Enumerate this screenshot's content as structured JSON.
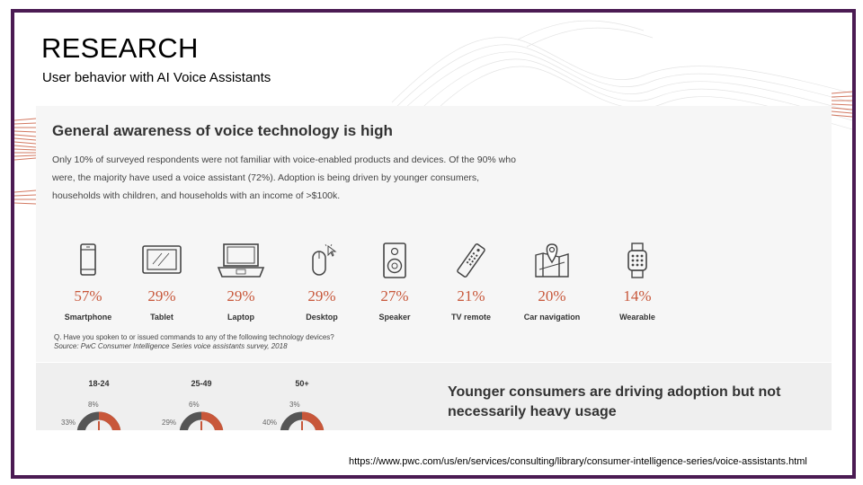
{
  "slide": {
    "title": "RESEARCH",
    "subtitle": "User behavior with AI Voice Assistants",
    "source_url": "https://www.pwc.com/us/en/services/consulting/library/consumer-intelligence-series/voice-assistants.html"
  },
  "card": {
    "heading": "General awareness of voice technology is high",
    "body": "Only 10% of surveyed respondents were not familiar with voice-enabled products and devices. Of the 90% who were, the majority have used a voice assistant (72%). Adoption is being driven by younger consumers, households with children, and households with an income of >$100k.",
    "devices": [
      {
        "name": "Smartphone",
        "percent": "57%",
        "icon": "smartphone-icon"
      },
      {
        "name": "Tablet",
        "percent": "29%",
        "icon": "tablet-icon"
      },
      {
        "name": "Laptop",
        "percent": "29%",
        "icon": "laptop-icon"
      },
      {
        "name": "Desktop",
        "percent": "29%",
        "icon": "desktop-mouse-icon"
      },
      {
        "name": "Speaker",
        "percent": "27%",
        "icon": "speaker-icon"
      },
      {
        "name": "TV remote",
        "percent": "21%",
        "icon": "tv-remote-icon"
      },
      {
        "name": "Car navigation",
        "percent": "20%",
        "icon": "car-navigation-icon"
      },
      {
        "name": "Wearable",
        "percent": "14%",
        "icon": "wearable-icon"
      }
    ],
    "question": "Q. Have you spoken to or issued commands to any of the following technology devices?",
    "source": "Source: PwC Consumer Intelligence Series voice assistants survey, 2018"
  },
  "card2": {
    "age_groups": [
      {
        "label": "18-24",
        "top_value": "8%",
        "left_value": "33%"
      },
      {
        "label": "25-49",
        "top_value": "6%",
        "left_value": "29%"
      },
      {
        "label": "50+",
        "top_value": "3%",
        "left_value": "40%"
      }
    ],
    "heading": "Younger consumers are driving adoption but not necessarily heavy usage"
  },
  "colors": {
    "frame": "#4b1b53",
    "accent": "#c8573a",
    "dark_gray": "#555555"
  }
}
